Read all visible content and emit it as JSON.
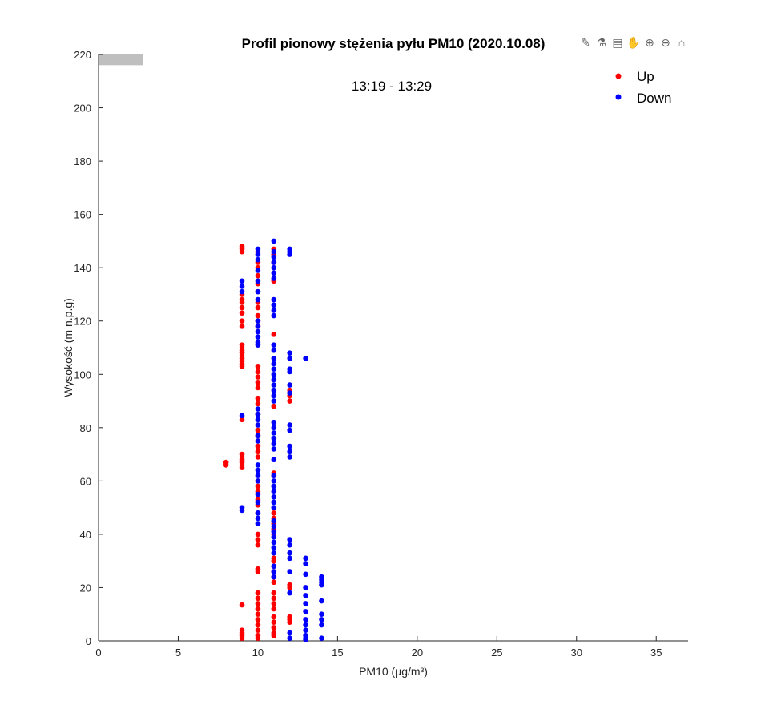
{
  "toolbar": {
    "icons": [
      "brush-icon",
      "data-tips-icon",
      "datacursor-icon",
      "pan-icon",
      "zoom-in-icon",
      "zoom-out-icon",
      "home-icon"
    ],
    "glyphs": [
      "✎",
      "⚗",
      "▤",
      "✋",
      "⊕",
      "⊖",
      "⌂"
    ]
  },
  "chart_data": {
    "type": "scatter",
    "title": "Profil pionowy stężenia pyłu PM10 (2020.10.08)",
    "subtitle": "13:19 - 13:29",
    "xlabel": "PM10 (μg/m³)",
    "xlabel_main": "PM10 (",
    "xlabel_mu": "μ",
    "xlabel_unit": "g/m",
    "xlabel_sup": "3",
    "xlabel_end": ")",
    "ylabel": "Wysokość (m n.p.g)",
    "xlim": [
      0,
      37
    ],
    "ylim": [
      0,
      220
    ],
    "xticks": [
      0,
      5,
      10,
      15,
      20,
      25,
      30,
      35
    ],
    "yticks": [
      0,
      20,
      40,
      60,
      80,
      100,
      120,
      140,
      160,
      180,
      200,
      220
    ],
    "legend_position": "top-right",
    "colors": {
      "Up": "#ff0000",
      "Down": "#0000ff",
      "axis": "#262626",
      "bar": "#bfbfbf"
    },
    "series": [
      {
        "name": "Up",
        "points": [
          [
            8,
            [
              66,
              67
            ]
          ],
          [
            9,
            [
              148,
              147,
              146,
              130,
              128,
              127,
              125,
              123,
              120,
              118,
              111,
              110,
              109,
              108,
              107,
              106,
              105,
              104,
              103,
              83,
              70,
              69,
              68,
              67,
              66,
              65,
              13.5,
              4,
              3,
              2,
              1
            ]
          ],
          [
            10,
            [
              146,
              142,
              140,
              137,
              134,
              131,
              127,
              125,
              122,
              120,
              118,
              103,
              101,
              99,
              97,
              95,
              91,
              89,
              85,
              81,
              79,
              77,
              75,
              73,
              71,
              69,
              60,
              58,
              56,
              53,
              51,
              48,
              40,
              38,
              36,
              27,
              26,
              18,
              16,
              14,
              12,
              10,
              8,
              6,
              4,
              2,
              1
            ]
          ],
          [
            11,
            [
              147,
              145,
              142,
              135,
              115,
              88,
              63,
              62,
              48,
              46,
              44,
              42,
              40,
              31,
              30,
              28,
              26,
              24,
              22,
              18,
              16,
              14,
              12,
              9,
              7,
              5,
              3,
              2
            ]
          ],
          [
            12,
            [
              94,
              92,
              90,
              21,
              20,
              9,
              8,
              7
            ]
          ]
        ]
      },
      {
        "name": "Down",
        "points": [
          [
            9,
            [
              135,
              133,
              131,
              84.5,
              50,
              49
            ]
          ],
          [
            10,
            [
              147,
              145,
              143,
              139,
              135,
              131,
              128,
              120,
              118,
              116,
              114,
              112,
              111,
              87,
              85,
              83,
              81,
              77,
              75,
              66,
              64,
              62,
              60,
              55,
              52,
              48,
              46,
              44
            ]
          ],
          [
            11,
            [
              150,
              146,
              144,
              142,
              140,
              138,
              136,
              128,
              126,
              124,
              122,
              111,
              109,
              106,
              104,
              102,
              100,
              98,
              96,
              94,
              92,
              90,
              82,
              80,
              78,
              76,
              74,
              72,
              68,
              62,
              60,
              58,
              56,
              54,
              52,
              50,
              45,
              43,
              41,
              39,
              37,
              35,
              33,
              28,
              26,
              24
            ]
          ],
          [
            12,
            [
              147,
              146,
              145,
              108,
              106,
              102,
              101,
              96,
              93,
              81,
              79,
              73,
              71,
              69,
              38,
              36,
              33,
              31,
              26,
              18,
              3,
              1
            ]
          ],
          [
            13,
            [
              106,
              31,
              29,
              25,
              20,
              17,
              14,
              11,
              8,
              6,
              4,
              2,
              1,
              0.5
            ]
          ],
          [
            14,
            [
              24,
              23,
              22,
              21,
              15,
              10,
              8,
              6,
              1
            ]
          ]
        ]
      }
    ]
  }
}
